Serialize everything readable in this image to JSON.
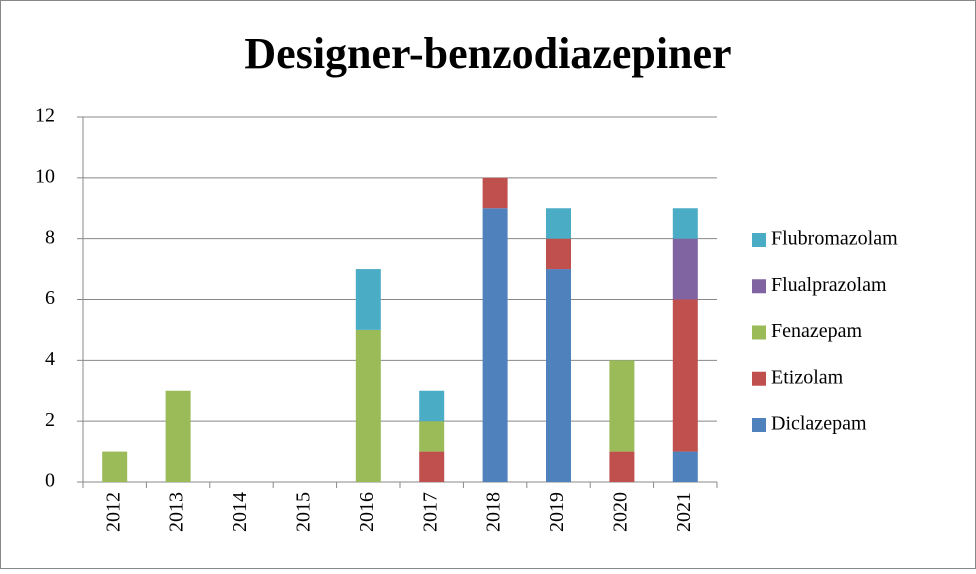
{
  "chart_data": {
    "type": "stacked_bar",
    "title": "Designer-benzodiazepiner",
    "categories": [
      "2012",
      "2013",
      "2014",
      "2015",
      "2016",
      "2017",
      "2018",
      "2019",
      "2020",
      "2021"
    ],
    "series": [
      {
        "name": "Diclazepam",
        "color": "#4f81bd",
        "values": [
          0,
          0,
          0,
          0,
          0,
          0,
          9,
          7,
          0,
          1
        ]
      },
      {
        "name": "Etizolam",
        "color": "#c0504d",
        "values": [
          0,
          0,
          0,
          0,
          0,
          1,
          1,
          1,
          1,
          5
        ]
      },
      {
        "name": "Fenazepam",
        "color": "#9bbb59",
        "values": [
          1,
          3,
          0,
          0,
          5,
          1,
          0,
          0,
          3,
          0
        ]
      },
      {
        "name": "Flualprazolam",
        "color": "#8064a2",
        "values": [
          0,
          0,
          0,
          0,
          0,
          0,
          0,
          0,
          0,
          2
        ]
      },
      {
        "name": "Flubromazolam",
        "color": "#4bacc6",
        "values": [
          0,
          0,
          0,
          0,
          2,
          1,
          0,
          1,
          0,
          1
        ]
      }
    ],
    "ylim": [
      0,
      12
    ],
    "yticks": [
      0,
      2,
      4,
      6,
      8,
      10,
      12
    ],
    "grid": true,
    "legend": "right"
  }
}
